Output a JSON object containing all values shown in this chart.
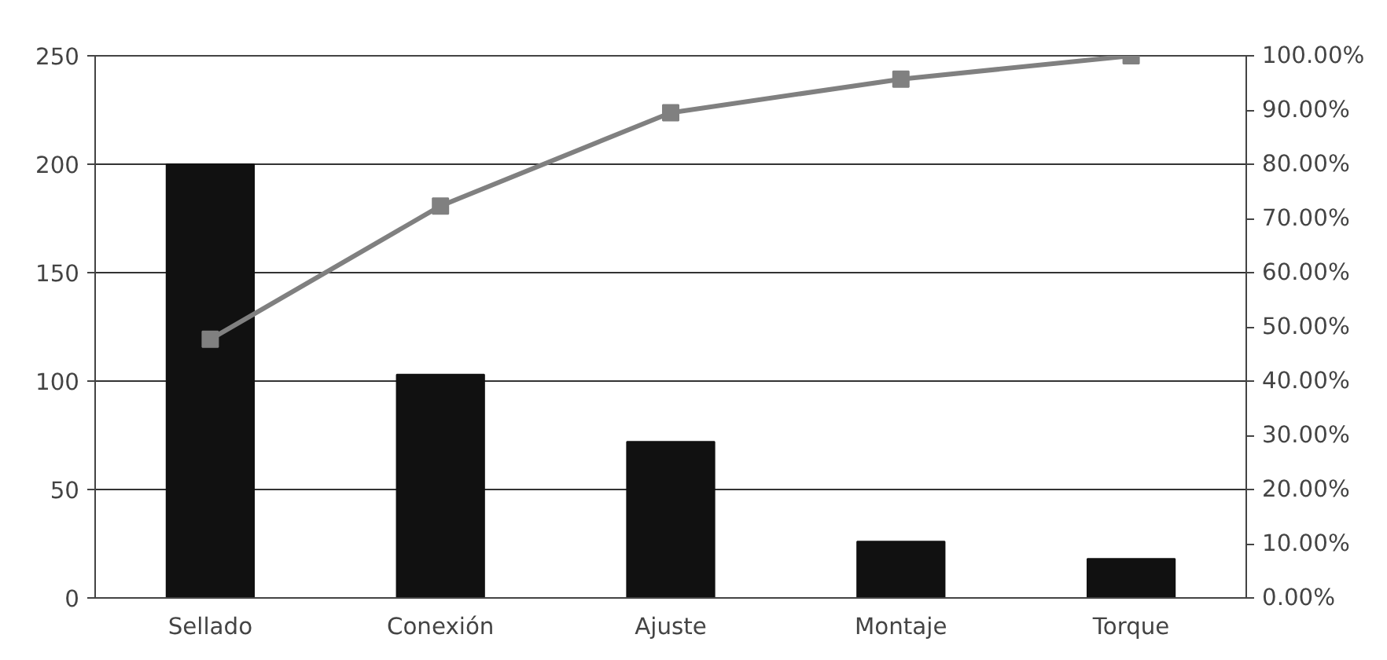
{
  "chart_data": {
    "type": "bar",
    "categories": [
      "Sellado",
      "Conexión",
      "Ajuste",
      "Montaje",
      "Torque"
    ],
    "series": [
      {
        "color": "#111111",
        "values": [
          200,
          103,
          72,
          26,
          18
        ]
      },
      {
        "type": "line",
        "axis": "y2",
        "color": "#808080",
        "marker": "square",
        "values": [
          47.7,
          72.3,
          89.5,
          95.7,
          100
        ]
      }
    ],
    "ylim": [
      0,
      250
    ],
    "yticks": [
      0,
      50,
      100,
      150,
      200,
      250
    ],
    "y2lim": [
      0,
      100
    ],
    "y2ticks": [
      {
        "value": 0,
        "label": "0.00%"
      },
      {
        "value": 10,
        "label": "10.00%"
      },
      {
        "value": 20,
        "label": "20.00%"
      },
      {
        "value": 30,
        "label": "30.00%"
      },
      {
        "value": 40,
        "label": "40.00%"
      },
      {
        "value": 50,
        "label": "50.00%"
      },
      {
        "value": 60,
        "label": "60.00%"
      },
      {
        "value": 70,
        "label": "70.00%"
      },
      {
        "value": 80,
        "label": "80.00%"
      },
      {
        "value": 90,
        "label": "90.00%"
      },
      {
        "value": 100,
        "label": "100.00%"
      }
    ],
    "grid": "y"
  }
}
